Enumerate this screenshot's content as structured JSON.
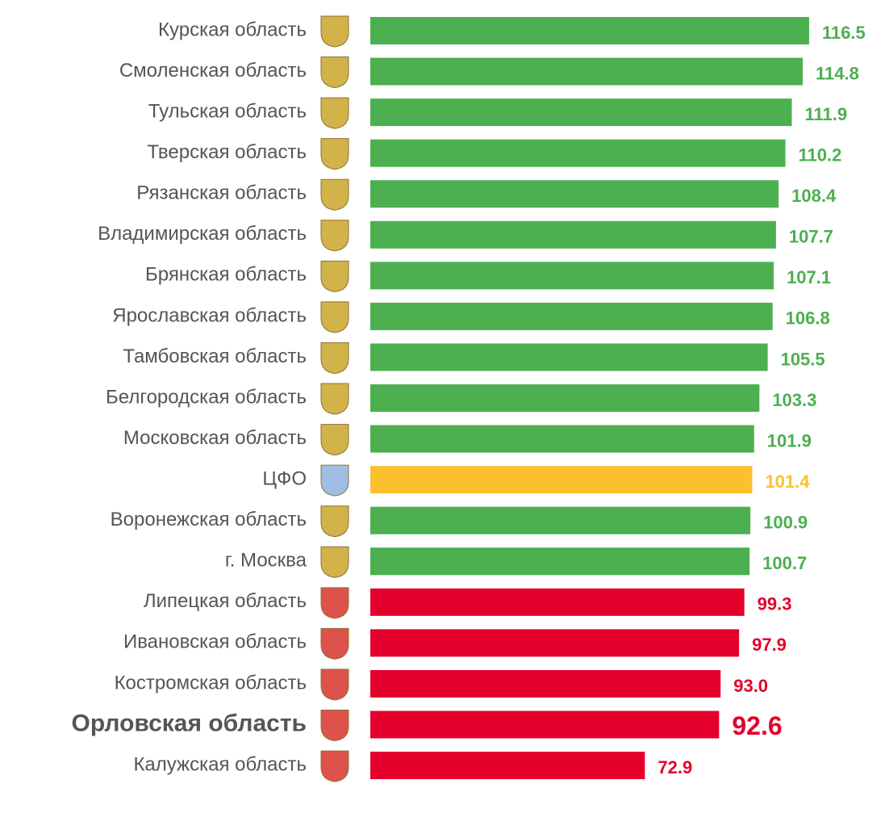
{
  "chart_data": {
    "type": "bar",
    "orientation": "horizontal",
    "categories": [
      "Курская область",
      "Смоленская область",
      "Тульская область",
      "Тверская область",
      "Рязанская область",
      "Владимирская область",
      "Брянская область",
      "Ярославская область",
      "Тамбовская область",
      "Белгородская область",
      "Московская область",
      "ЦФО",
      "Воронежская область",
      "г. Москва",
      "Липецкая область",
      "Ивановская область",
      "Костромская область",
      "Орловская область",
      "Калужская область"
    ],
    "values": [
      116.5,
      114.8,
      111.9,
      110.2,
      108.4,
      107.7,
      107.1,
      106.8,
      105.5,
      103.3,
      101.9,
      101.4,
      100.9,
      100.7,
      99.3,
      97.9,
      93.0,
      92.6,
      72.9
    ],
    "value_labels": [
      "116.5",
      "114.8",
      "111.9",
      "110.2",
      "108.4",
      "107.7",
      "107.1",
      "106.8",
      "105.5",
      "103.3",
      "101.9",
      "101.4",
      "100.9",
      "100.7",
      "99.3",
      "97.9",
      "93.0",
      "92.6",
      "72.9"
    ],
    "colors": [
      "#4caf50",
      "#4caf50",
      "#4caf50",
      "#4caf50",
      "#4caf50",
      "#4caf50",
      "#4caf50",
      "#4caf50",
      "#4caf50",
      "#4caf50",
      "#4caf50",
      "#fbc02d",
      "#4caf50",
      "#4caf50",
      "#e4002b",
      "#e4002b",
      "#e4002b",
      "#e4002b",
      "#e4002b"
    ],
    "emphasized": [
      17
    ],
    "xlim": [
      0,
      136
    ]
  }
}
